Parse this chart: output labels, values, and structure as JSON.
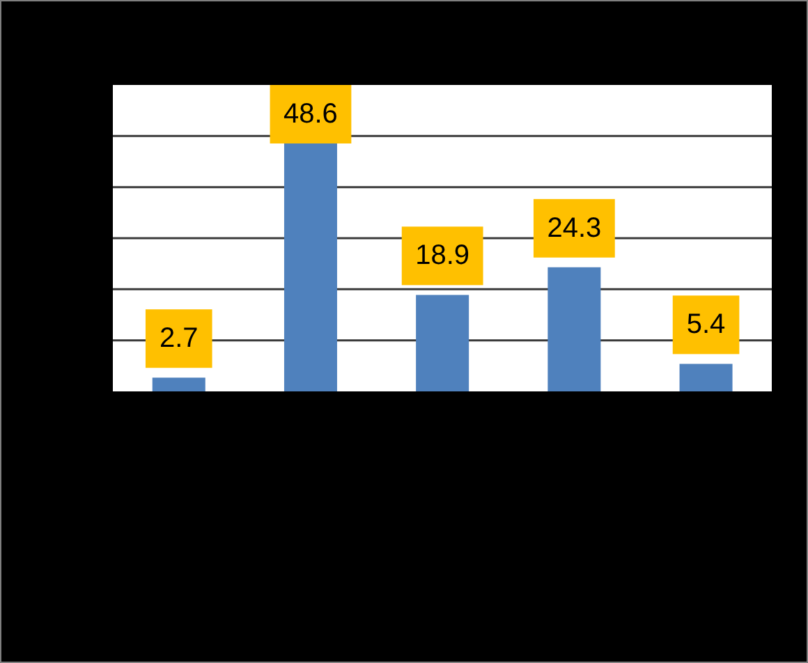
{
  "chart_data": {
    "type": "bar",
    "categories": [
      null,
      null,
      null,
      null,
      null
    ],
    "values": [
      2.7,
      48.6,
      18.9,
      24.3,
      5.4
    ],
    "color": "#4f81bd",
    "ylim": [
      0,
      60
    ],
    "yticks": [
      {
        "value": 10,
        "label": null
      },
      {
        "value": 20,
        "label": null
      },
      {
        "value": 30,
        "label": null
      },
      {
        "value": 40,
        "label": null
      },
      {
        "value": 50,
        "label": null
      }
    ],
    "grid": "y",
    "tick_labels": false,
    "data_labels": true
  }
}
